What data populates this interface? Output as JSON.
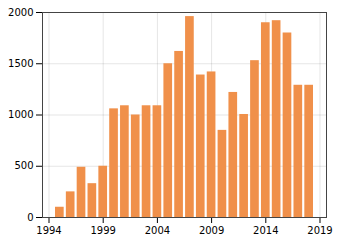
{
  "chart_data": {
    "type": "bar",
    "x": [
      1995,
      1996,
      1997,
      1998,
      1999,
      2000,
      2001,
      2002,
      2003,
      2004,
      2005,
      2006,
      2007,
      2008,
      2009,
      2010,
      2011,
      2012,
      2013,
      2014,
      2015,
      2016,
      2017,
      2018
    ],
    "values": [
      100,
      250,
      490,
      330,
      500,
      1060,
      1090,
      1000,
      1090,
      1090,
      1500,
      1620,
      1960,
      1390,
      1420,
      850,
      1220,
      1005,
      1530,
      1900,
      1920,
      1800,
      1290,
      1290
    ],
    "color": "#F0904A",
    "xlim": [
      1993.4,
      2019.6
    ],
    "xticks": [
      1994,
      1999,
      2004,
      2009,
      2014,
      2019
    ],
    "ylim": [
      0,
      2000
    ],
    "yticks": [
      0,
      500,
      1000,
      1500,
      2000
    ],
    "grid": true
  }
}
